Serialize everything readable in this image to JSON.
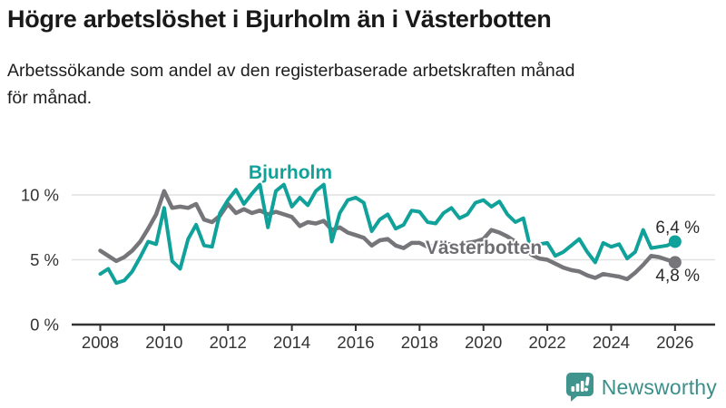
{
  "header": {
    "title": "Högre arbetslöshet i Bjurholm än i Västerbotten",
    "subtitle_line1": "Arbetssökande som andel av den registerbaserade arbetskraften månad",
    "subtitle_line2": "för månad."
  },
  "chart_data": {
    "type": "line",
    "title": "Högre arbetslöshet i Bjurholm än i Västerbotten",
    "subtitle": "Arbetssökande som andel av den registerbaserade arbetskraften månad för månad.",
    "unit": "%",
    "grid": "horizontal",
    "legend_position": "inline-labels",
    "x_range": [
      2008,
      2026
    ],
    "points_per_year": 4,
    "ylim": [
      0,
      11.5
    ],
    "x_ticks": [
      2008,
      2010,
      2012,
      2014,
      2016,
      2018,
      2020,
      2022,
      2024,
      2026
    ],
    "y_ticks": [
      {
        "value": 0,
        "label": "0 %"
      },
      {
        "value": 5,
        "label": "5 %"
      },
      {
        "value": 10,
        "label": "10 %"
      }
    ],
    "colors": {
      "grid": "#e1e1e1",
      "axis": "#333333",
      "tick_text": "#333333"
    },
    "series": [
      {
        "name": "Bjurholm",
        "color": "#10a29a",
        "label_color": "#10a29a",
        "end_value": 6.4,
        "end_label": "6,4 %",
        "values": [
          3.9,
          4.3,
          3.2,
          3.4,
          4.1,
          5.2,
          6.4,
          6.2,
          9.0,
          4.9,
          4.3,
          6.6,
          7.7,
          6.1,
          6.0,
          8.6,
          9.6,
          10.4,
          9.3,
          10.1,
          10.8,
          7.5,
          10.3,
          10.8,
          9.1,
          9.8,
          9.2,
          10.3,
          10.8,
          6.4,
          8.6,
          9.6,
          9.8,
          9.4,
          7.2,
          8.1,
          8.5,
          7.4,
          7.7,
          8.8,
          8.7,
          7.9,
          7.8,
          8.6,
          9.0,
          8.2,
          8.5,
          9.4,
          9.6,
          9.1,
          9.5,
          8.5,
          7.9,
          8.2,
          5.6,
          6.2,
          6.3,
          5.3,
          5.6,
          6.1,
          6.6,
          5.6,
          4.8,
          6.3,
          6.0,
          6.2,
          5.1,
          5.6,
          7.3,
          5.9,
          6.0,
          6.1,
          6.4
        ]
      },
      {
        "name": "Västerbotten",
        "color": "#76767a",
        "label_color": "#6e6e72",
        "end_value": 4.8,
        "end_label": "4,8 %",
        "values": [
          5.7,
          5.3,
          4.9,
          5.2,
          5.7,
          6.4,
          7.4,
          8.5,
          10.3,
          9.0,
          9.1,
          9.0,
          9.3,
          8.1,
          7.9,
          8.4,
          9.3,
          8.6,
          8.9,
          8.6,
          8.8,
          8.5,
          8.7,
          8.5,
          8.3,
          7.6,
          7.9,
          7.8,
          8.0,
          7.3,
          7.5,
          7.1,
          6.9,
          6.7,
          6.1,
          6.5,
          6.6,
          6.1,
          5.9,
          6.3,
          6.3,
          6.0,
          6.1,
          6.2,
          6.2,
          6.1,
          6.3,
          6.4,
          6.6,
          7.3,
          7.1,
          6.8,
          6.4,
          6.0,
          5.4,
          5.1,
          5.0,
          4.7,
          4.4,
          4.2,
          4.1,
          3.8,
          3.6,
          3.9,
          3.8,
          3.7,
          3.5,
          4.0,
          4.6,
          5.3,
          5.2,
          5.0,
          4.8
        ]
      }
    ]
  },
  "footer": {
    "brand": "Newsworthy",
    "logo_icon": "bar-chart-speech-bubble",
    "logo_color": "#40948e",
    "text_color": "#3a8f89"
  }
}
